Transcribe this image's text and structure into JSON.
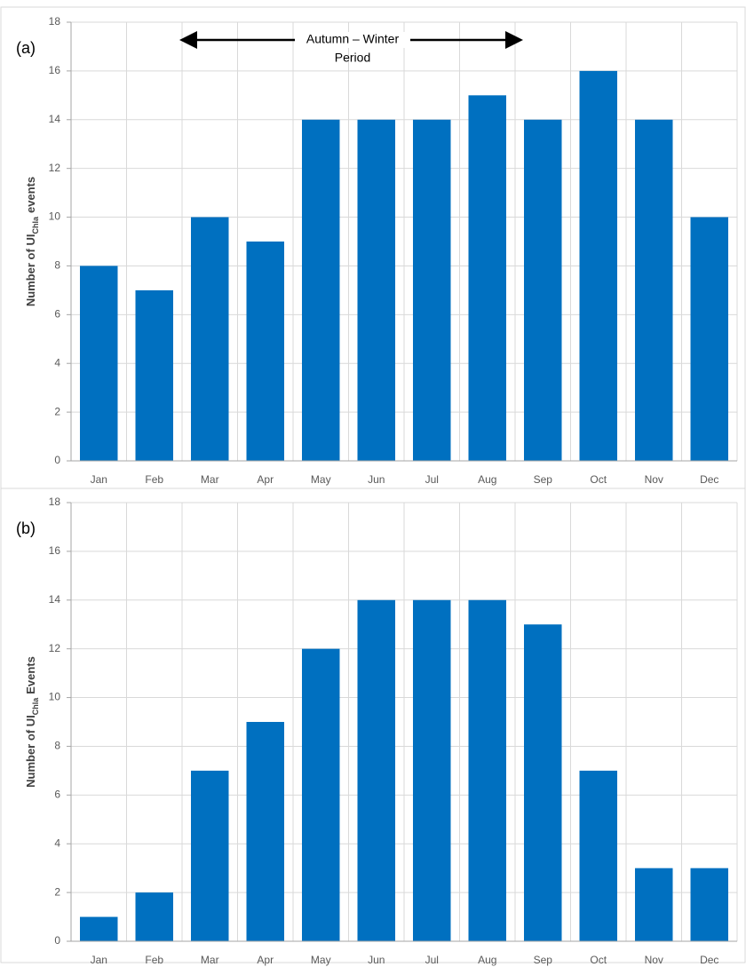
{
  "chart_data": [
    {
      "type": "bar",
      "panel_label": "(a)",
      "ylabel": {
        "text": "Number of UI",
        "subscript": "Chla",
        "suffix": "events"
      },
      "annotation": [
        "Autumn – Winter",
        "Period"
      ],
      "categories": [
        "Jan",
        "Feb",
        "Mar",
        "Apr",
        "May",
        "Jun",
        "Jul",
        "Aug",
        "Sep",
        "Oct",
        "Nov",
        "Dec"
      ],
      "values": [
        8,
        7,
        10,
        9,
        14,
        14,
        14,
        15,
        14,
        16,
        14,
        10
      ],
      "color": "#0070c0",
      "ylim": [
        0,
        18
      ],
      "yticks": [
        0,
        2,
        4,
        6,
        8,
        10,
        12,
        14,
        16,
        18
      ],
      "grid": true
    },
    {
      "type": "bar",
      "panel_label": "(b)",
      "ylabel": {
        "text": "Number of UI",
        "subscript": "Chla",
        "suffix": "Events"
      },
      "categories": [
        "Jan",
        "Feb",
        "Mar",
        "Apr",
        "May",
        "Jun",
        "Jul",
        "Aug",
        "Sep",
        "Oct",
        "Nov",
        "Dec"
      ],
      "values": [
        1,
        2,
        7,
        9,
        12,
        14,
        14,
        14,
        13,
        7,
        3,
        3
      ],
      "color": "#0070c0",
      "ylim": [
        0,
        18
      ],
      "yticks": [
        0,
        2,
        4,
        6,
        8,
        10,
        12,
        14,
        16,
        18
      ],
      "grid": true
    }
  ]
}
